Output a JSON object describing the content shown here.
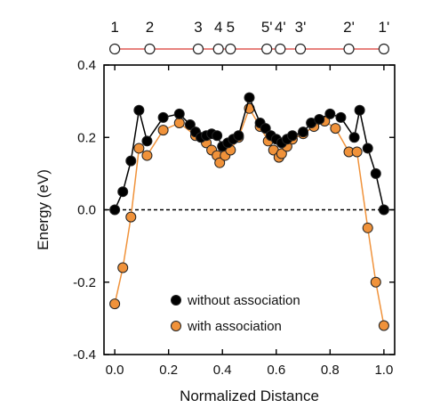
{
  "chart_data": {
    "type": "line",
    "xlabel": "Normalized Distance",
    "ylabel": "Energy (eV)",
    "xlim": [
      -0.04,
      1.04
    ],
    "ylim": [
      -0.4,
      0.4
    ],
    "xticks": [
      0.0,
      0.2,
      0.4,
      0.6,
      0.8,
      1.0
    ],
    "xtick_labels": [
      "0.0",
      "0.2",
      "0.4",
      "0.6",
      "0.8",
      "1.0"
    ],
    "yticks": [
      -0.4,
      -0.2,
      0.0,
      0.2,
      0.4
    ],
    "ytick_labels": [
      "-0.4",
      "-0.2",
      "0.0",
      "0.2",
      "0.4"
    ],
    "reference_line": {
      "y": 0.0,
      "style": "dashed"
    },
    "legend": {
      "placement": "bottom-center"
    },
    "site_markers": {
      "color": "#e05a55",
      "points": [
        {
          "label": "1",
          "x": 0.0
        },
        {
          "label": "2",
          "x": 0.13
        },
        {
          "label": "3",
          "x": 0.31
        },
        {
          "label": "4",
          "x": 0.385
        },
        {
          "label": "5",
          "x": 0.43
        },
        {
          "label": "5'",
          "x": 0.565
        },
        {
          "label": "4'",
          "x": 0.615
        },
        {
          "label": "3'",
          "x": 0.69
        },
        {
          "label": "2'",
          "x": 0.87
        },
        {
          "label": "1'",
          "x": 1.0
        }
      ]
    },
    "series": [
      {
        "name": "without association",
        "color": "#000000",
        "marker_fill": "#000000",
        "line_color": "#000000",
        "points": [
          [
            0.0,
            0.0
          ],
          [
            0.03,
            0.05
          ],
          [
            0.06,
            0.135
          ],
          [
            0.09,
            0.275
          ],
          [
            0.12,
            0.19
          ],
          [
            0.18,
            0.255
          ],
          [
            0.24,
            0.265
          ],
          [
            0.28,
            0.235
          ],
          [
            0.3,
            0.215
          ],
          [
            0.32,
            0.2
          ],
          [
            0.34,
            0.205
          ],
          [
            0.36,
            0.21
          ],
          [
            0.38,
            0.205
          ],
          [
            0.4,
            0.175
          ],
          [
            0.42,
            0.185
          ],
          [
            0.44,
            0.195
          ],
          [
            0.46,
            0.205
          ],
          [
            0.5,
            0.31
          ],
          [
            0.54,
            0.24
          ],
          [
            0.56,
            0.225
          ],
          [
            0.58,
            0.205
          ],
          [
            0.6,
            0.195
          ],
          [
            0.62,
            0.185
          ],
          [
            0.64,
            0.195
          ],
          [
            0.66,
            0.205
          ],
          [
            0.7,
            0.215
          ],
          [
            0.73,
            0.24
          ],
          [
            0.76,
            0.25
          ],
          [
            0.8,
            0.265
          ],
          [
            0.84,
            0.255
          ],
          [
            0.89,
            0.2
          ],
          [
            0.91,
            0.275
          ],
          [
            0.94,
            0.17
          ],
          [
            0.97,
            0.1
          ],
          [
            1.0,
            0.0
          ]
        ]
      },
      {
        "name": "with association",
        "color": "#f0923a",
        "marker_fill": "#f0923a",
        "line_color": "#f0923a",
        "points": [
          [
            0.0,
            -0.26
          ],
          [
            0.03,
            -0.16
          ],
          [
            0.06,
            -0.02
          ],
          [
            0.09,
            0.17
          ],
          [
            0.12,
            0.15
          ],
          [
            0.18,
            0.22
          ],
          [
            0.24,
            0.24
          ],
          [
            0.3,
            0.205
          ],
          [
            0.34,
            0.185
          ],
          [
            0.36,
            0.165
          ],
          [
            0.38,
            0.15
          ],
          [
            0.39,
            0.13
          ],
          [
            0.41,
            0.15
          ],
          [
            0.43,
            0.165
          ],
          [
            0.46,
            0.2
          ],
          [
            0.5,
            0.28
          ],
          [
            0.54,
            0.23
          ],
          [
            0.57,
            0.19
          ],
          [
            0.59,
            0.165
          ],
          [
            0.61,
            0.145
          ],
          [
            0.62,
            0.155
          ],
          [
            0.64,
            0.175
          ],
          [
            0.66,
            0.195
          ],
          [
            0.7,
            0.21
          ],
          [
            0.74,
            0.23
          ],
          [
            0.78,
            0.245
          ],
          [
            0.82,
            0.225
          ],
          [
            0.87,
            0.16
          ],
          [
            0.9,
            0.16
          ],
          [
            0.94,
            -0.05
          ],
          [
            0.97,
            -0.2
          ],
          [
            1.0,
            -0.32
          ]
        ]
      }
    ]
  }
}
